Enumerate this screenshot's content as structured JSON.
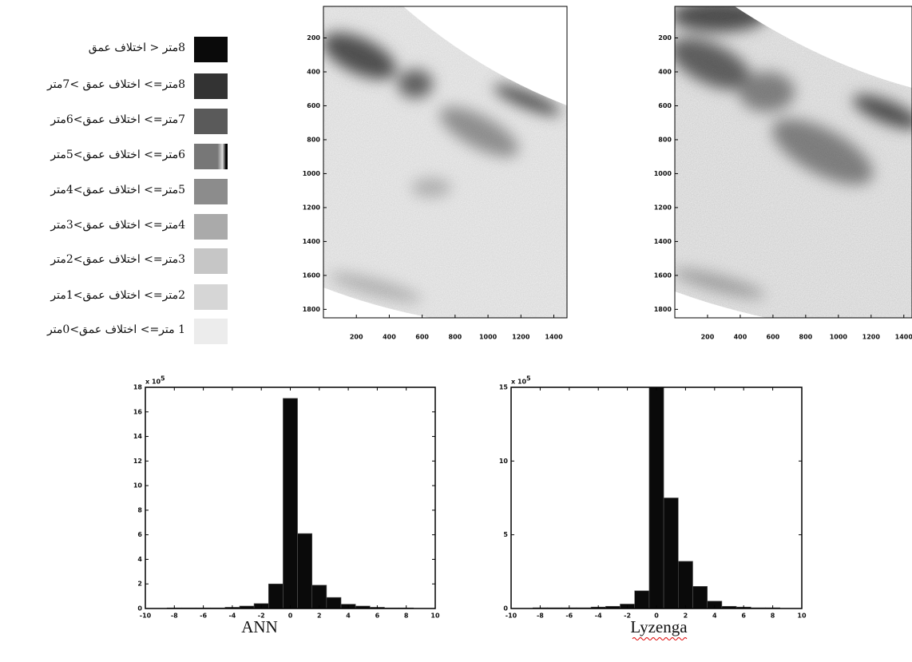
{
  "legend": [
    {
      "label": "8متر < اختلاف عمق",
      "color": "#0a0a0a"
    },
    {
      "label": "8متر=> اختلاف عمق >7متر",
      "color": "#333333"
    },
    {
      "label": "7متر=> اختلاف عمق>6متر",
      "color": "#5a5a5a"
    },
    {
      "label": "6متر=> اختلاف عمق>5متر",
      "color": "#777777"
    },
    {
      "label": "5متر=> اختلاف عمق>4متر",
      "color": "#8c8c8c"
    },
    {
      "label": "4متر=> اختلاف عمق>3متر",
      "color": "#aaaaaa"
    },
    {
      "label": "3متر=> اختلاف عمق>2متر",
      "color": "#c6c6c6"
    },
    {
      "label": "2متر=> اختلاف عمق>1متر",
      "color": "#d6d6d6"
    },
    {
      "label": "1 متر=> اختلاف عمق>0متر",
      "color": "#ececec"
    }
  ],
  "maps": [
    {
      "xlim": [
        0,
        1480
      ],
      "ylim": [
        14,
        1850
      ],
      "xticks": [
        200,
        400,
        600,
        800,
        1000,
        1200,
        1400
      ],
      "yticks": [
        200,
        400,
        600,
        800,
        1000,
        1200,
        1400,
        1600,
        1800
      ]
    },
    {
      "xlim": [
        0,
        1450
      ],
      "ylim": [
        14,
        1850
      ],
      "xticks": [
        200,
        400,
        600,
        800,
        1000,
        1200,
        1400
      ],
      "yticks": [
        200,
        400,
        600,
        800,
        1000,
        1200,
        1400,
        1600,
        1800
      ]
    }
  ],
  "chart_data": [
    {
      "type": "histogram",
      "caption": "ANN",
      "scale_label": "x 10",
      "scale_exponent": 5,
      "color": "#0a0a0a",
      "bins": [
        -8.5,
        -7.5,
        -6.5,
        -5.5,
        -4.5,
        -3.5,
        -2.5,
        -1.5,
        -0.5,
        0.5,
        1.5,
        2.5,
        3.5,
        4.5,
        5.5,
        6.5,
        7.5,
        8.5
      ],
      "counts": [
        0.05,
        0.05,
        0.05,
        0.05,
        0.1,
        0.2,
        0.4,
        2.0,
        17.1,
        6.1,
        1.9,
        0.9,
        0.35,
        0.2,
        0.1,
        0.05,
        0.05
      ],
      "xlim": [
        -10,
        10
      ],
      "xticks": [
        -10,
        -8,
        -6,
        -4,
        -2,
        0,
        2,
        4,
        6,
        8,
        10
      ],
      "ylim": [
        0,
        18
      ],
      "yticks": [
        0,
        2,
        4,
        6,
        8,
        10,
        12,
        14,
        16,
        18
      ]
    },
    {
      "type": "histogram",
      "caption": "Lyzenga",
      "scale_label": "x 10",
      "scale_exponent": 5,
      "color": "#0a0a0a",
      "bins": [
        -8.5,
        -7.5,
        -6.5,
        -5.5,
        -4.5,
        -3.5,
        -2.5,
        -1.5,
        -0.5,
        0.5,
        1.5,
        2.5,
        3.5,
        4.5,
        5.5,
        6.5,
        7.5,
        8.5
      ],
      "counts": [
        0.05,
        0.05,
        0.05,
        0.05,
        0.1,
        0.15,
        0.3,
        1.2,
        15,
        7.5,
        3.2,
        1.5,
        0.5,
        0.15,
        0.1,
        0.05,
        0.05
      ],
      "xlim": [
        -10,
        10
      ],
      "xticks": [
        -10,
        -8,
        -6,
        -4,
        -2,
        0,
        2,
        4,
        6,
        8,
        10
      ],
      "ylim": [
        0,
        15
      ],
      "yticks": [
        0,
        5,
        10,
        15
      ]
    }
  ]
}
